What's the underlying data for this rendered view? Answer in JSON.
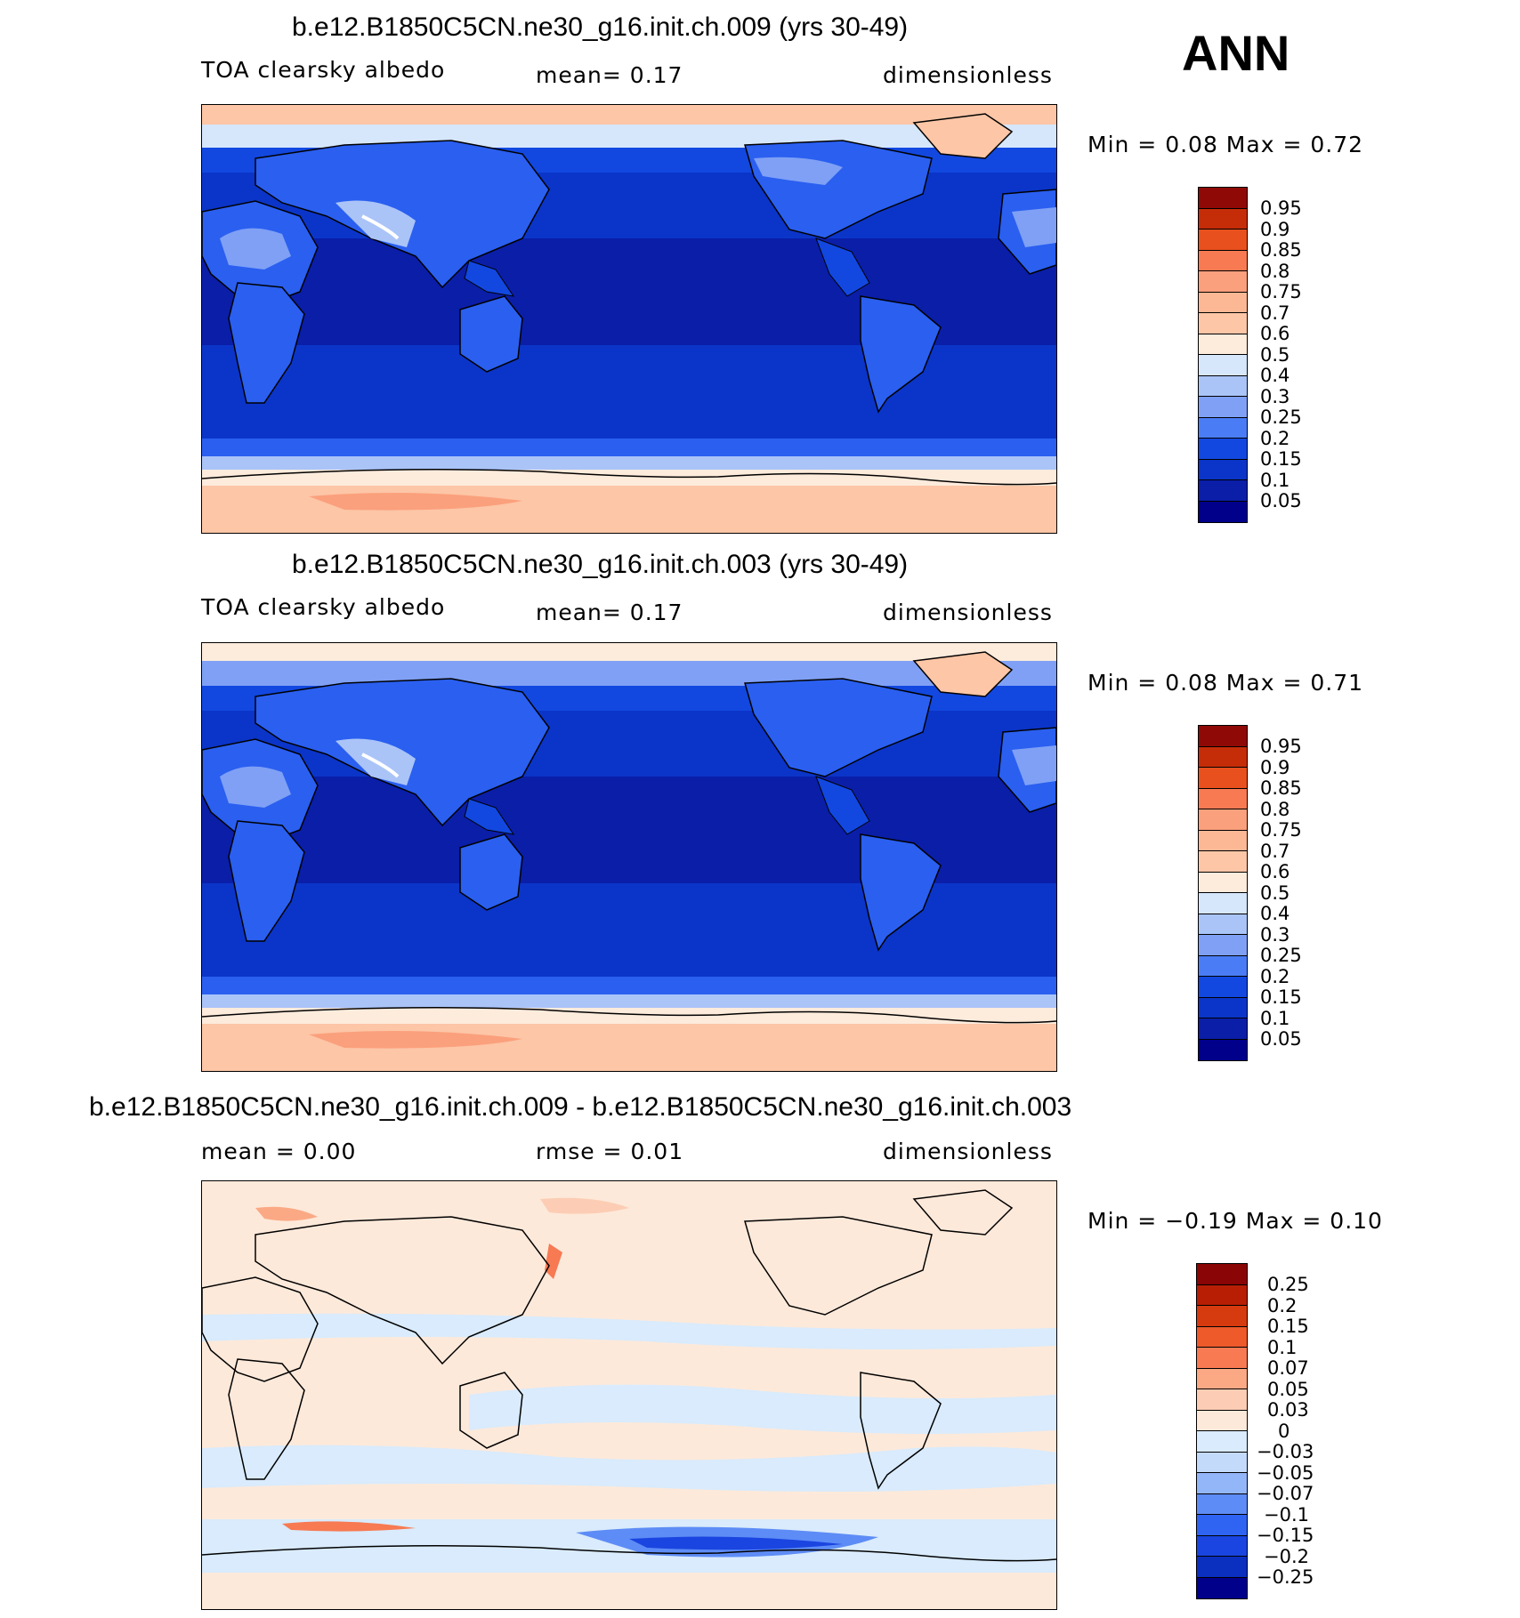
{
  "season": "ANN",
  "colors": {
    "seq": [
      "#00008b",
      "#0a1ea8",
      "#0b35c8",
      "#1248e0",
      "#2a5ff0",
      "#4a7df5",
      "#7fa0f5",
      "#aac4f8",
      "#d6e6fb",
      "#fdebdc",
      "#fcc6a7",
      "#fba07c",
      "#f87a52",
      "#e8501e",
      "#c52d08",
      "#8f0a06"
    ],
    "diff": [
      "#00008b",
      "#0b2fbf",
      "#1a45e0",
      "#2f63f2",
      "#5e8cf6",
      "#93b6f8",
      "#c4dafb",
      "#d9ebfc",
      "#fde9da",
      "#fccdb4",
      "#fba985",
      "#f77a52",
      "#ee5a2a",
      "#d63a0f",
      "#b81e04",
      "#8a0505"
    ]
  },
  "panels": [
    {
      "title": "b.e12.B1850C5CN.ne30_g16.init.ch.009 (yrs 30-49)",
      "left": "TOA clearsky albedo",
      "center": "mean=    0.17",
      "right": "dimensionless",
      "minmax": "Min =     0.08  Max =     0.72",
      "levels": [
        "0.95",
        "0.9",
        "0.85",
        "0.8",
        "0.75",
        "0.7",
        "0.6",
        "0.5",
        "0.4",
        "0.3",
        "0.25",
        "0.2",
        "0.15",
        "0.1",
        "0.05"
      ]
    },
    {
      "title": "b.e12.B1850C5CN.ne30_g16.init.ch.003 (yrs 30-49)",
      "left": "TOA clearsky albedo",
      "center": "mean=    0.17",
      "right": "dimensionless",
      "minmax": "Min =     0.08  Max =     0.71",
      "levels": [
        "0.95",
        "0.9",
        "0.85",
        "0.8",
        "0.75",
        "0.7",
        "0.6",
        "0.5",
        "0.4",
        "0.3",
        "0.25",
        "0.2",
        "0.15",
        "0.1",
        "0.05"
      ]
    },
    {
      "title": "b.e12.B1850C5CN.ne30_g16.init.ch.009 - b.e12.B1850C5CN.ne30_g16.init.ch.003",
      "left": "mean =     0.00",
      "center": "rmse =     0.01",
      "right": "dimensionless",
      "minmax": "Min =   −0.19  Max =     0.10",
      "levels": [
        "0.25",
        "0.2",
        "0.15",
        "0.1",
        "0.07",
        "0.05",
        "0.03",
        "0",
        "−0.03",
        "−0.05",
        "−0.07",
        "−0.1",
        "−0.15",
        "−0.2",
        "−0.25"
      ]
    }
  ]
}
